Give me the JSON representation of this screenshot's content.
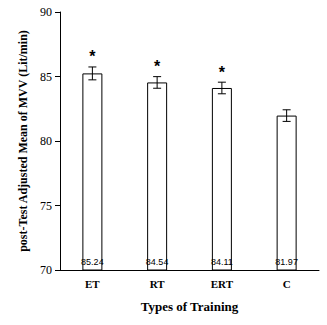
{
  "chart_data": {
    "type": "bar",
    "categories": [
      "ET",
      "RT",
      "ERT",
      "C"
    ],
    "values": [
      85.24,
      84.54,
      84.11,
      81.97
    ],
    "errors": [
      0.5,
      0.45,
      0.45,
      0.45
    ],
    "annotations": [
      "*",
      "*",
      "*",
      null
    ],
    "color": "#ffffff",
    "xlabel": "Types of Training",
    "ylabel": "post-Test Adjusted Mean of MVV (Lit/min)",
    "ylim": [
      70,
      90
    ],
    "yticks": [
      70,
      75,
      80,
      85,
      90
    ],
    "grid": false,
    "data_labels": true
  }
}
